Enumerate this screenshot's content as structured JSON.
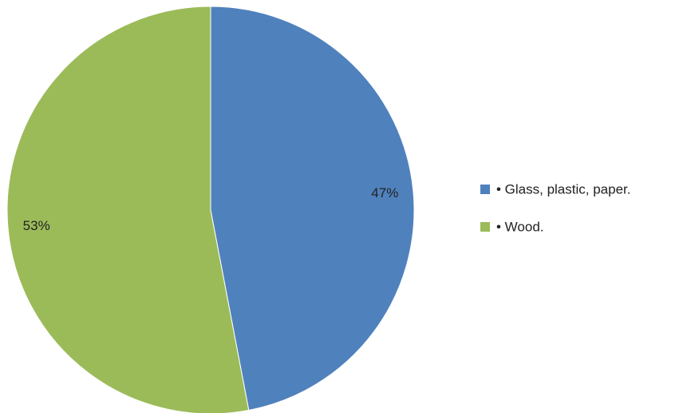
{
  "chart_data": {
    "type": "pie",
    "title": "",
    "slices": [
      {
        "label": "• Glass, plastic, paper.",
        "value": 47,
        "display": "47%",
        "color": "#4F81BD"
      },
      {
        "label": "• Wood.",
        "value": 53,
        "display": "53%",
        "color": "#9BBB59"
      }
    ],
    "legend_position": "right"
  }
}
